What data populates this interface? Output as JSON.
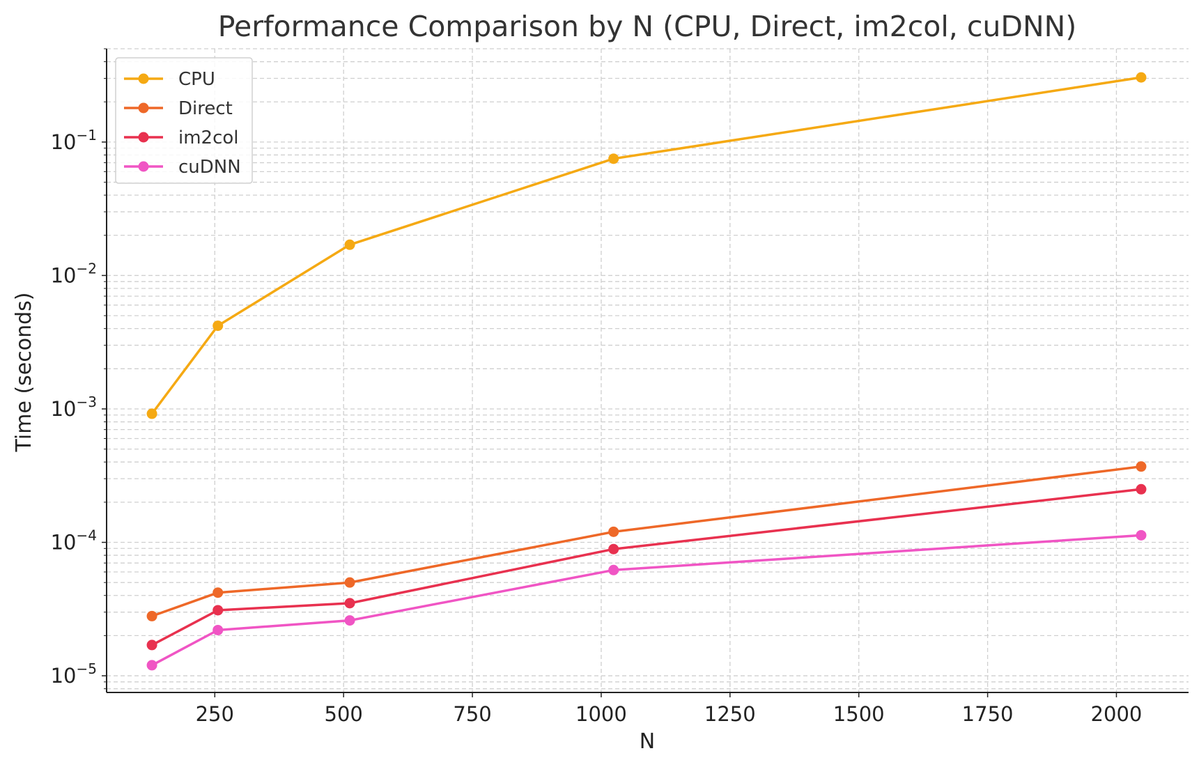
{
  "chart_data": {
    "type": "line",
    "title": "Performance Comparison by N (CPU, Direct, im2col, cuDNN)",
    "xlabel": "N",
    "ylabel": "Time (seconds)",
    "x": [
      128,
      256,
      512,
      1024,
      2048
    ],
    "xlim": [
      40,
      2140
    ],
    "xticks": [
      250,
      500,
      750,
      1000,
      1250,
      1500,
      1750,
      2000
    ],
    "yscale": "log",
    "ylim": [
      7.5e-06,
      0.5
    ],
    "yticks": [
      {
        "base": "10",
        "exp": "−5",
        "value": 1e-05
      },
      {
        "base": "10",
        "exp": "−4",
        "value": 0.0001
      },
      {
        "base": "10",
        "exp": "−3",
        "value": 0.001
      },
      {
        "base": "10",
        "exp": "−2",
        "value": 0.01
      },
      {
        "base": "10",
        "exp": "−1",
        "value": 0.1
      }
    ],
    "grid": true,
    "legend_position": "top-left",
    "series": [
      {
        "name": "CPU",
        "color": "#f5a913",
        "values": [
          0.00092,
          0.0042,
          0.017,
          0.075,
          0.305
        ]
      },
      {
        "name": "Direct",
        "color": "#ee6828",
        "values": [
          2.8e-05,
          4.2e-05,
          5e-05,
          0.00012,
          0.00037
        ]
      },
      {
        "name": "im2col",
        "color": "#e8314f",
        "values": [
          1.7e-05,
          3.1e-05,
          3.5e-05,
          8.9e-05,
          0.00025
        ]
      },
      {
        "name": "cuDNN",
        "color": "#f055c4",
        "values": [
          1.2e-05,
          2.2e-05,
          2.6e-05,
          6.2e-05,
          0.000113
        ]
      }
    ]
  }
}
